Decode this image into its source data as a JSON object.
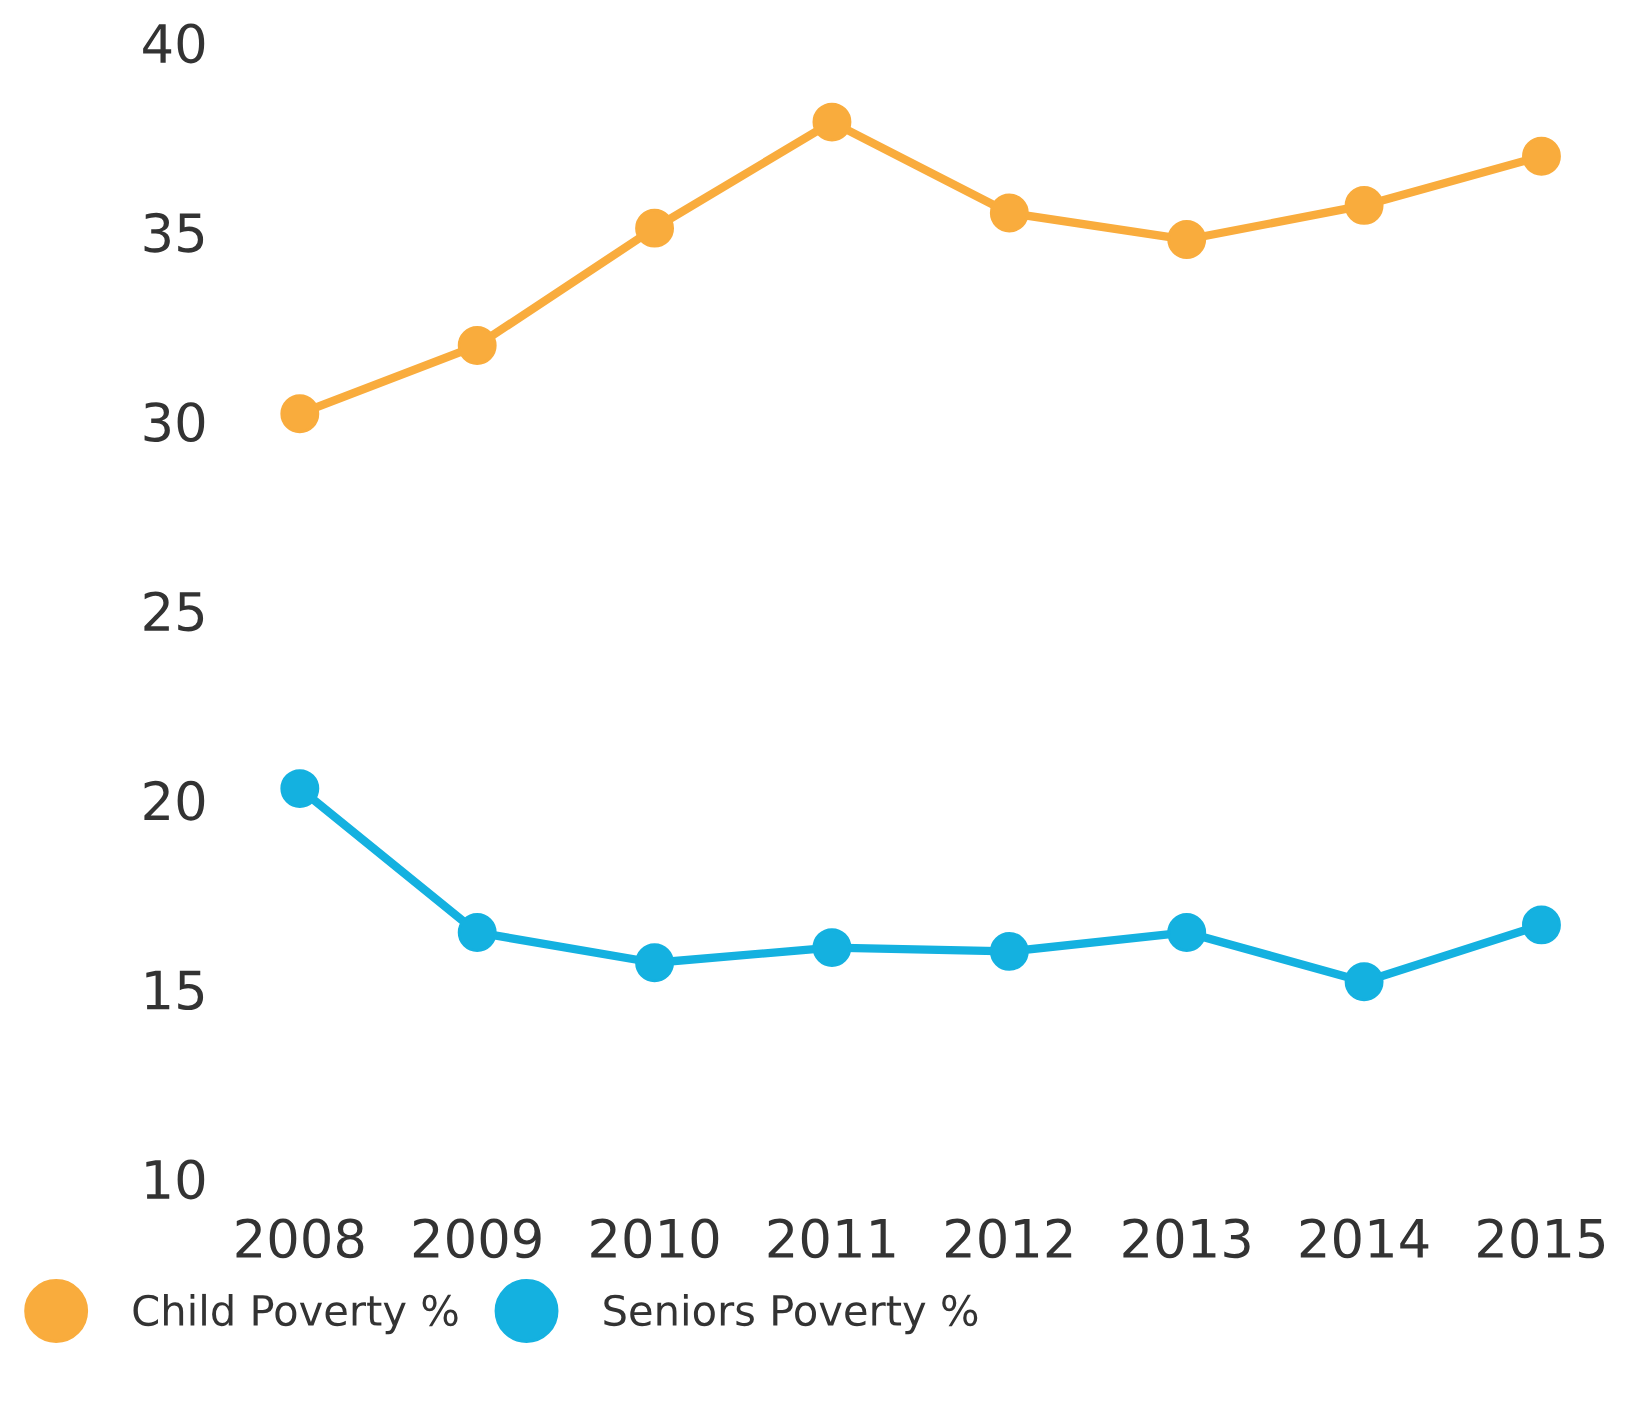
{
  "chart_data": {
    "type": "line",
    "categories": [
      "2008",
      "2009",
      "2010",
      "2011",
      "2012",
      "2013",
      "2014",
      "2015"
    ],
    "series": [
      {
        "name": "Child Poverty %",
        "color": "#f9ac3d",
        "values": [
          30.2,
          32.0,
          35.1,
          37.9,
          35.5,
          34.8,
          35.7,
          37.0
        ]
      },
      {
        "name": "Seniors Poverty %",
        "color": "#14b1e0",
        "values": [
          20.3,
          16.5,
          15.7,
          16.1,
          16.0,
          16.5,
          15.2,
          16.7
        ]
      }
    ],
    "ylim": [
      10,
      40
    ],
    "yticks": [
      10,
      15,
      20,
      25,
      30,
      35,
      40
    ],
    "grid": false,
    "legend": "bottom left",
    "marker": "circle",
    "line_style": "solid"
  }
}
